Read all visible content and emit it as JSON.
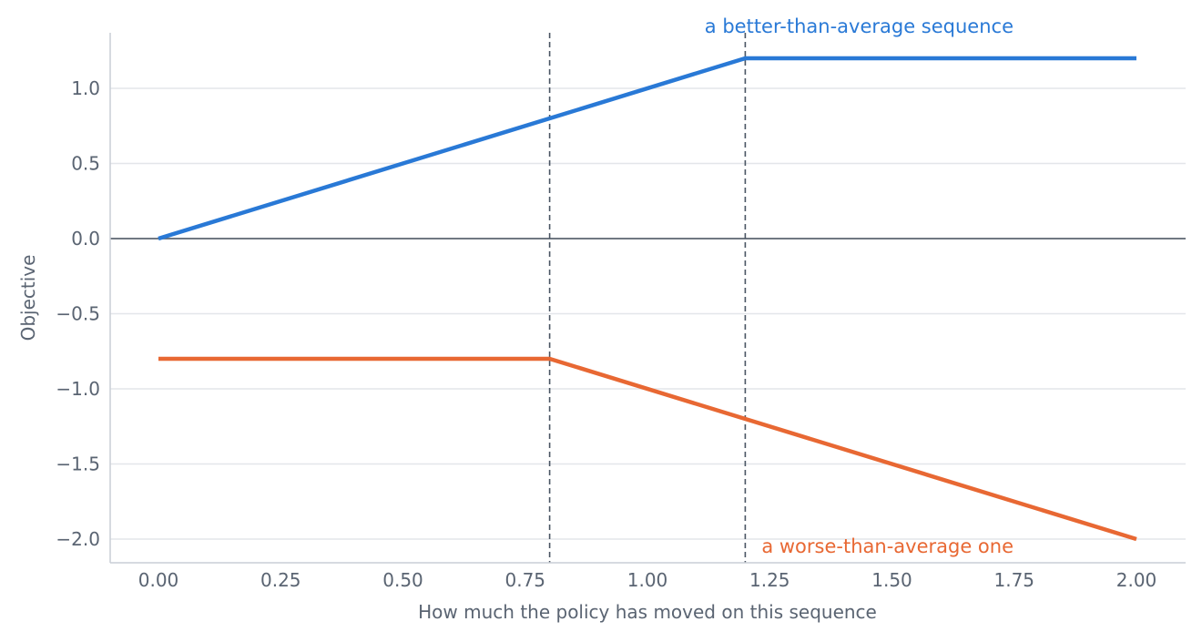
{
  "chart_data": {
    "type": "line",
    "title": "",
    "xlabel": "How much the policy has moved on this sequence",
    "ylabel": "Objective",
    "xlim": [
      -0.1,
      2.1
    ],
    "ylim": [
      -2.16,
      1.36
    ],
    "x_ticks": [
      0.0,
      0.25,
      0.5,
      0.75,
      1.0,
      1.25,
      1.5,
      1.75,
      2.0
    ],
    "x_tick_labels": [
      "0.00",
      "0.25",
      "0.50",
      "0.75",
      "1.00",
      "1.25",
      "1.50",
      "1.75",
      "2.00"
    ],
    "y_ticks": [
      1.0,
      0.5,
      0.0,
      -0.5,
      -1.0,
      -1.5,
      -2.0
    ],
    "y_tick_labels": [
      "1.0",
      "0.5",
      "0.0",
      "−0.5",
      "−1.0",
      "−1.5",
      "−2.0"
    ],
    "grid": "horizontal",
    "reference_lines": {
      "horizontal": [
        0.0
      ],
      "vertical_dashed": [
        0.8,
        1.2
      ]
    },
    "series": [
      {
        "color": "#2979d6",
        "x": [
          0.0,
          1.2,
          2.0
        ],
        "y": [
          0.0,
          1.2,
          1.2
        ]
      },
      {
        "color": "#e86833",
        "x": [
          0.0,
          0.8,
          2.0
        ],
        "y": [
          -0.8,
          -0.8,
          -2.0
        ]
      }
    ],
    "annotations": [
      {
        "text": "a better-than-average sequence",
        "x": 1.2,
        "y": 1.3,
        "color": "#2979d6"
      },
      {
        "text": "a worse-than-average one",
        "x": 1.2,
        "y": -2.05,
        "color": "#e86833"
      }
    ]
  }
}
